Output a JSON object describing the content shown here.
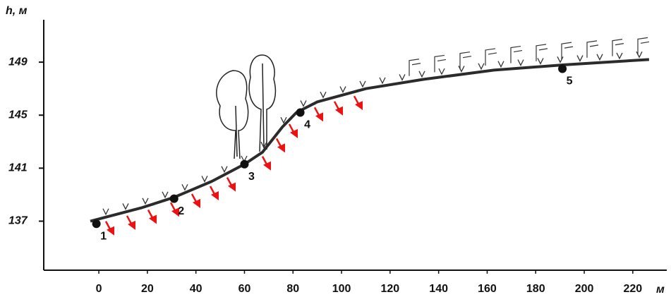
{
  "chart_data": {
    "type": "line",
    "y_label": "h, м",
    "x_unit": "м",
    "x": [
      -3.5,
      17.4,
      31,
      46.5,
      60,
      67.4,
      75.6,
      81.4,
      90,
      110,
      133.7,
      162.8,
      191.8,
      226.7
    ],
    "values": [
      137,
      138,
      138.8,
      140,
      141.3,
      142.2,
      144.1,
      145.2,
      146,
      147,
      147.7,
      148.4,
      148.8,
      149.2
    ],
    "color": "#2b2b2b",
    "points": [
      {
        "label": "1",
        "x": -1,
        "y": 136.8
      },
      {
        "label": "2",
        "x": 31,
        "y": 138.7
      },
      {
        "label": "3",
        "x": 60,
        "y": 141.3
      },
      {
        "label": "4",
        "x": 83,
        "y": 145.2
      },
      {
        "label": "5",
        "x": 191,
        "y": 148.5
      }
    ],
    "xlim": [
      -22.7,
      234
    ],
    "ylim": [
      133.3,
      152.2
    ],
    "xticks": [
      0,
      20,
      40,
      60,
      80,
      100,
      120,
      140,
      160,
      180,
      200,
      220
    ],
    "yticks": [
      137,
      141,
      145,
      149
    ]
  }
}
